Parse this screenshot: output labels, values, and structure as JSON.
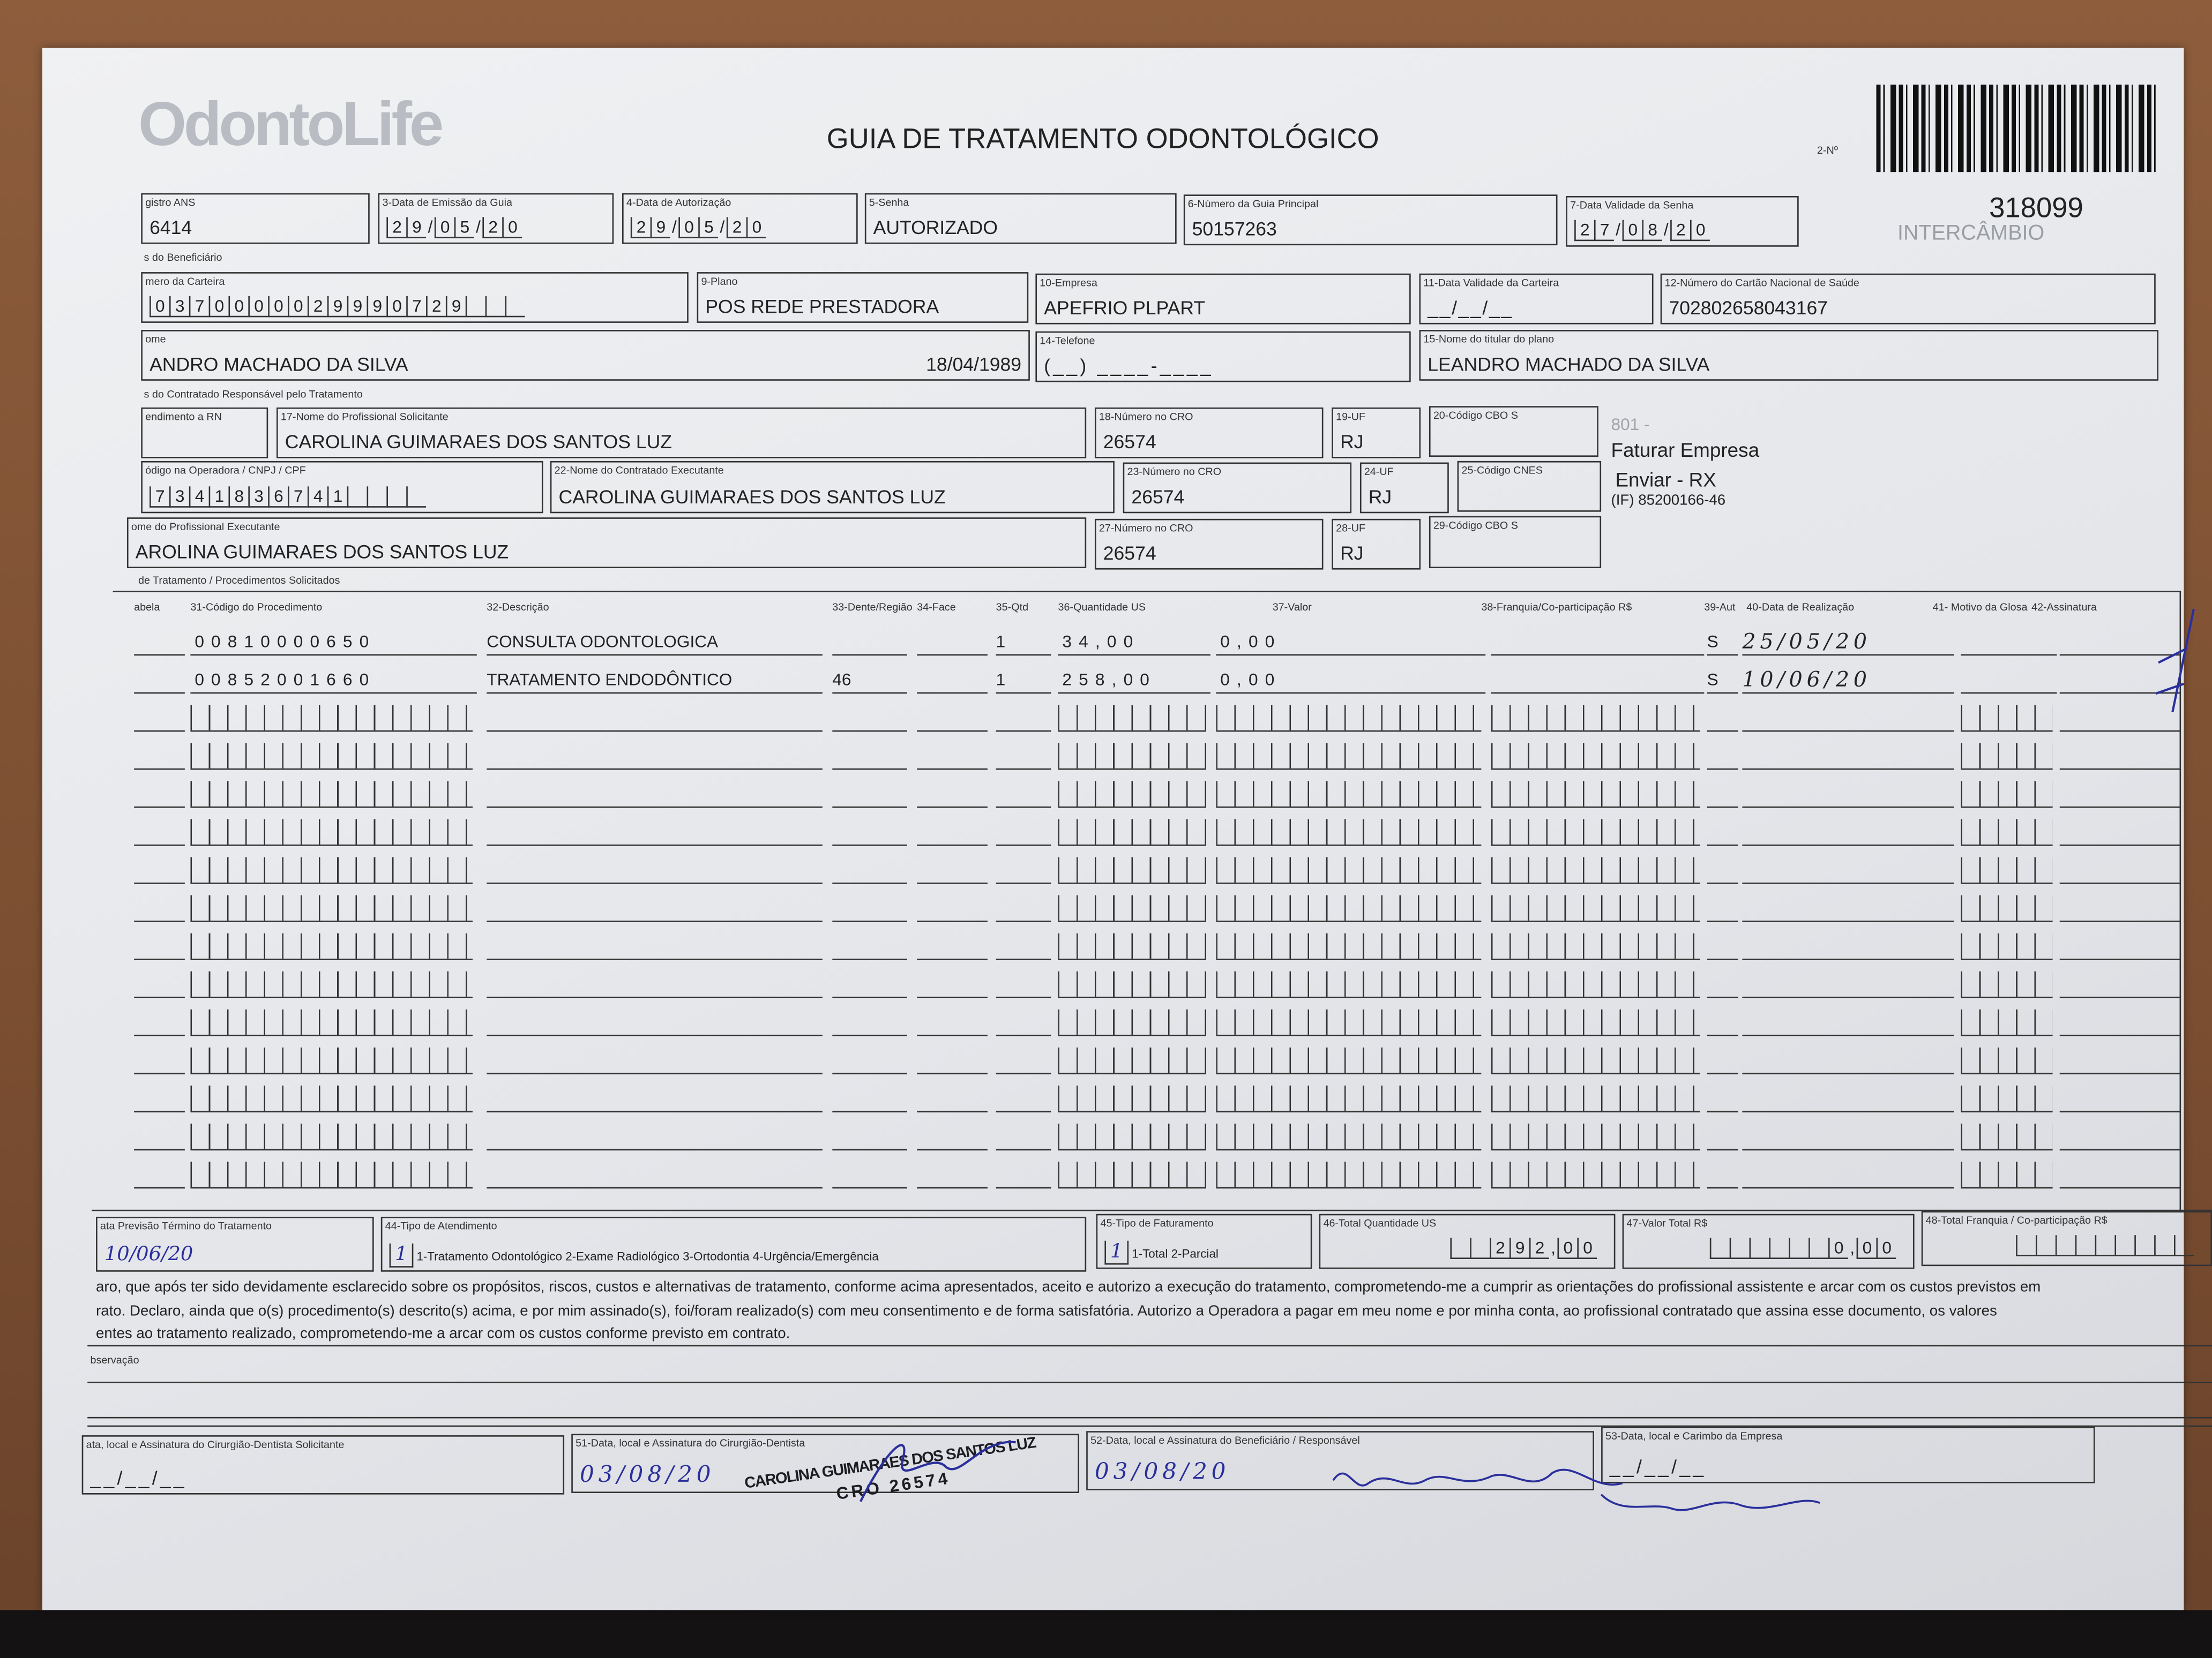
{
  "header": {
    "logo_text": "OdontoLife",
    "title": "GUIA DE TRATAMENTO ODONTOLÓGICO",
    "guide_number_label": "2-Nº",
    "guide_number": "318099",
    "type": "INTERCÂMBIO"
  },
  "row1": {
    "registro_ans": {
      "label": "gistro ANS",
      "value": "6414"
    },
    "data_emissao": {
      "label": "3-Data de Emissão da Guia",
      "value": "29/05/20"
    },
    "data_autorizacao": {
      "label": "4-Data de Autorização",
      "value": "29/05/20"
    },
    "senha": {
      "label": "5-Senha",
      "value": "AUTORIZADO"
    },
    "guia_principal": {
      "label": "6-Número da Guia Principal",
      "value": "50157263"
    },
    "validade_senha": {
      "label": "7-Data Validade da Senha",
      "value": "27/08/20"
    }
  },
  "beneficiario": {
    "section": "s do Beneficiário",
    "carteira": {
      "label": "mero da Carteira",
      "value": "0370000029990729"
    },
    "plano": {
      "label": "9-Plano",
      "value": "POS REDE PRESTADORA"
    },
    "empresa": {
      "label": "10-Empresa",
      "value": "APEFRIO PLPART"
    },
    "validade_carteira": {
      "label": "11-Data Validade da Carteira",
      "value": "__/__/__"
    },
    "cns": {
      "label": "12-Número do Cartão Nacional de Saúde",
      "value": "702802658043167"
    },
    "nome": {
      "label": "ome",
      "value": "ANDRO MACHADO DA SILVA",
      "birth": "18/04/1989"
    },
    "telefone": {
      "label": "14-Telefone",
      "value": "(__) ____-____"
    },
    "titular": {
      "label": "15-Nome do titular do plano",
      "value": "LEANDRO MACHADO DA SILVA"
    }
  },
  "contratado": {
    "section": "s do Contratado Responsável pelo Tratamento",
    "rn": {
      "label": "endimento a RN"
    },
    "solicitante": {
      "label": "17-Nome do Profissional Solicitante",
      "value": "CAROLINA GUIMARAES DOS SANTOS LUZ"
    },
    "cro18": {
      "label": "18-Número no CRO",
      "value": "26574"
    },
    "uf19": {
      "label": "19-UF",
      "value": "RJ"
    },
    "cbo20": {
      "label": "20-Código CBO S",
      "value": ""
    },
    "codigo_operadora": {
      "label": "ódigo na Operadora / CNPJ / CPF",
      "value": "7341836741"
    },
    "executante": {
      "label": "22-Nome do Contratado Executante",
      "value": "CAROLINA GUIMARAES DOS SANTOS LUZ"
    },
    "cro23": {
      "label": "23-Número no CRO",
      "value": "26574"
    },
    "uf24": {
      "label": "24-UF",
      "value": "RJ"
    },
    "cnes25": {
      "label": "25-Código CNES",
      "value": ""
    },
    "prof_exec": {
      "label": "ome do Profissional Executante",
      "value": "AROLINA GUIMARAES DOS SANTOS LUZ"
    },
    "cro27": {
      "label": "27-Número no CRO",
      "value": "26574"
    },
    "uf28": {
      "label": "28-UF",
      "value": "RJ"
    },
    "cbo29": {
      "label": "29-Código CBO S",
      "value": ""
    },
    "notes": {
      "code": "801 -",
      "faturar": "Faturar Empresa",
      "enviar": "Enviar - RX",
      "if": "(IF) 85200166-46"
    }
  },
  "procedimentos": {
    "section": "de Tratamento / Procedimentos Solicitados",
    "headers": [
      "abela",
      "31-Código do Procedimento",
      "32-Descrição",
      "33-Dente/Região",
      "34-Face",
      "35-Qtd",
      "36-Quantidade US",
      "37-Valor",
      "38-Franquia/Co-participação R$",
      "39-Aut",
      "40-Data de Realização",
      "41- Motivo da Glosa",
      "42-Assinatura"
    ],
    "rows": [
      {
        "tabela": "",
        "codigo": "00810000650",
        "descricao": "CONSULTA ODONTOLOGICA",
        "dente": "",
        "face": "",
        "qtd": "1",
        "qtd_us": "34,00",
        "valor": "0,00",
        "franquia": "",
        "aut": "S",
        "data": "25/05/20",
        "glosa": ""
      },
      {
        "tabela": "",
        "codigo": "00852001660",
        "descricao": "TRATAMENTO ENDODÔNTICO",
        "dente": "46",
        "face": "",
        "qtd": "1",
        "qtd_us": "258,00",
        "valor": "0,00",
        "franquia": "",
        "aut": "S",
        "data": "10/06/20",
        "glosa": ""
      }
    ],
    "empty_rows": 13
  },
  "totais": {
    "previsao": {
      "label": "ata Previsão Término do Tratamento",
      "value": "10/06/20"
    },
    "tipo_atendimento": {
      "label": "44-Tipo de Atendimento",
      "value": "1",
      "options": "1-Tratamento Odontológico  2-Exame Radiológico  3-Ortodontia  4-Urgência/Emergência"
    },
    "tipo_faturamento": {
      "label": "45-Tipo de Faturamento",
      "value": "1",
      "options": "1-Total  2-Parcial"
    },
    "total_us": {
      "label": "46-Total Quantidade US",
      "value": "292,00"
    },
    "valor_total": {
      "label": "47-Valor Total R$",
      "value": "0,00"
    },
    "total_franquia": {
      "label": "48-Total Franquia / Co-participação R$",
      "value": ""
    }
  },
  "declaracao": [
    "aro, que após ter sido devidamente esclarecido sobre os propósitos, riscos, custos e alternativas de tratamento, conforme acima apresentados, aceito e autorizo a execução do tratamento, comprometendo-me a cumprir as orientações do profissional assistente e arcar com os custos previstos em",
    "rato. Declaro, ainda que o(s) procedimento(s) descrito(s) acima, e por mim assinado(s), foi/foram realizado(s) com meu consentimento e de forma satisfatória. Autorizo a Operadora a pagar em meu nome e por minha conta, ao profissional contratado que assina esse documento, os valores",
    "entes ao tratamento realizado, comprometendo-me a arcar com os custos conforme previsto em contrato."
  ],
  "observacao": {
    "label": "bservação",
    "value": ""
  },
  "assinaturas": {
    "s50": {
      "label": "ata, local e Assinatura do Cirurgião-Dentista Solicitante",
      "value": "__/__/__"
    },
    "s51": {
      "label": "51-Data, local e Assinatura do Cirurgião-Dentista",
      "value": "03/08/20"
    },
    "s52": {
      "label": "52-Data, local e Assinatura do Beneficiário / Responsável",
      "value": "03/08/20"
    },
    "s53": {
      "label": "53-Data, local e Carimbo da Empresa",
      "value": "__/__/__"
    },
    "stamp": {
      "name": "CAROLINA GUIMARAES DOS SANTOS LUZ",
      "cro": "CRO 26574"
    },
    "beneficiary_signature": "Leandro Machado da Silva"
  },
  "colors": {
    "ink": "#2a2f9c",
    "print": "#222222",
    "paper": "#e8eaee"
  }
}
